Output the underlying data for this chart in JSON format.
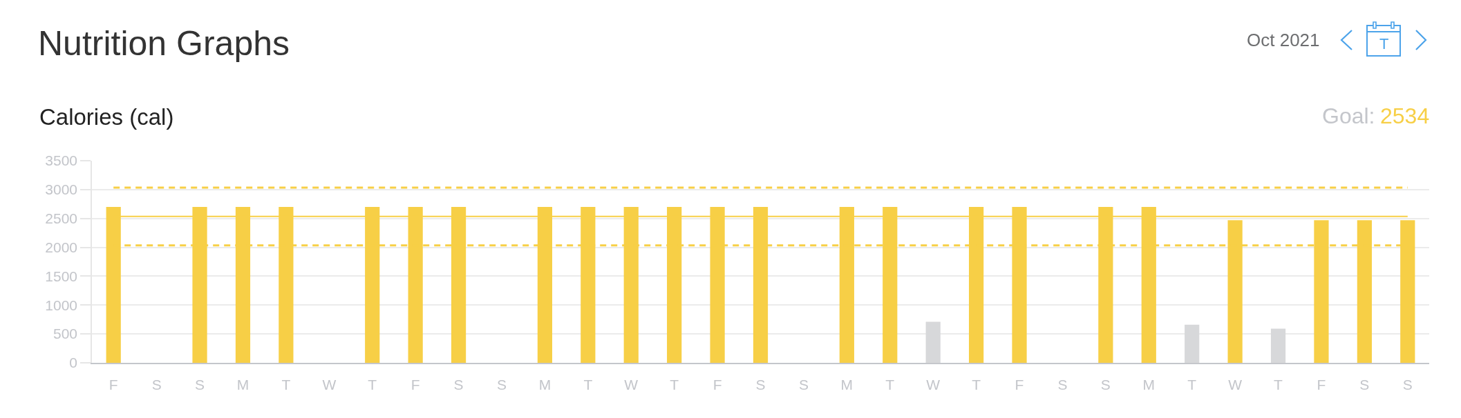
{
  "chart_data": {
    "type": "bar",
    "title": "Nutrition Graphs",
    "subtitle": "Calories (cal)",
    "annotations": [
      "Oct 2021",
      "T",
      "Goal:",
      "2534"
    ],
    "categories": [
      "F",
      "S",
      "S",
      "M",
      "T",
      "W",
      "T",
      "F",
      "S",
      "S",
      "M",
      "T",
      "W",
      "T",
      "F",
      "S",
      "S",
      "M",
      "T",
      "W",
      "T",
      "F",
      "S",
      "S",
      "M",
      "T",
      "W",
      "T",
      "F",
      "S",
      "S"
    ],
    "values": [
      2700,
      null,
      2700,
      2700,
      2700,
      null,
      2700,
      2700,
      2700,
      null,
      2700,
      2700,
      2700,
      2700,
      2700,
      2700,
      null,
      2700,
      2700,
      710,
      2700,
      2700,
      null,
      2700,
      2700,
      660,
      2470,
      590,
      2470,
      2470,
      2470
    ],
    "colors": [
      "#f7cf46",
      null,
      "#f7cf46",
      "#f7cf46",
      "#f7cf46",
      null,
      "#f7cf46",
      "#f7cf46",
      "#f7cf46",
      null,
      "#f7cf46",
      "#f7cf46",
      "#f7cf46",
      "#f7cf46",
      "#f7cf46",
      "#f7cf46",
      null,
      "#f7cf46",
      "#f7cf46",
      "#d7d8da",
      "#f7cf46",
      "#f7cf46",
      null,
      "#f7cf46",
      "#f7cf46",
      "#d7d8da",
      "#f7cf46",
      "#d7d8da",
      "#f7cf46",
      "#f7cf46",
      "#f7cf46"
    ],
    "ylim": [
      0,
      3500
    ],
    "yticks": [
      0,
      500,
      1000,
      1500,
      2000,
      2500,
      3000,
      3500
    ],
    "grid": "y",
    "ref_lines": [
      {
        "axis": "y",
        "value": 3034,
        "color": "#f7cf46",
        "line_style": "dashed"
      },
      {
        "axis": "y",
        "value": 2534,
        "color": "#f7cf46",
        "line_style": "solid"
      },
      {
        "axis": "y",
        "value": 2034,
        "color": "#f7cf46",
        "line_style": "dashed"
      }
    ]
  }
}
